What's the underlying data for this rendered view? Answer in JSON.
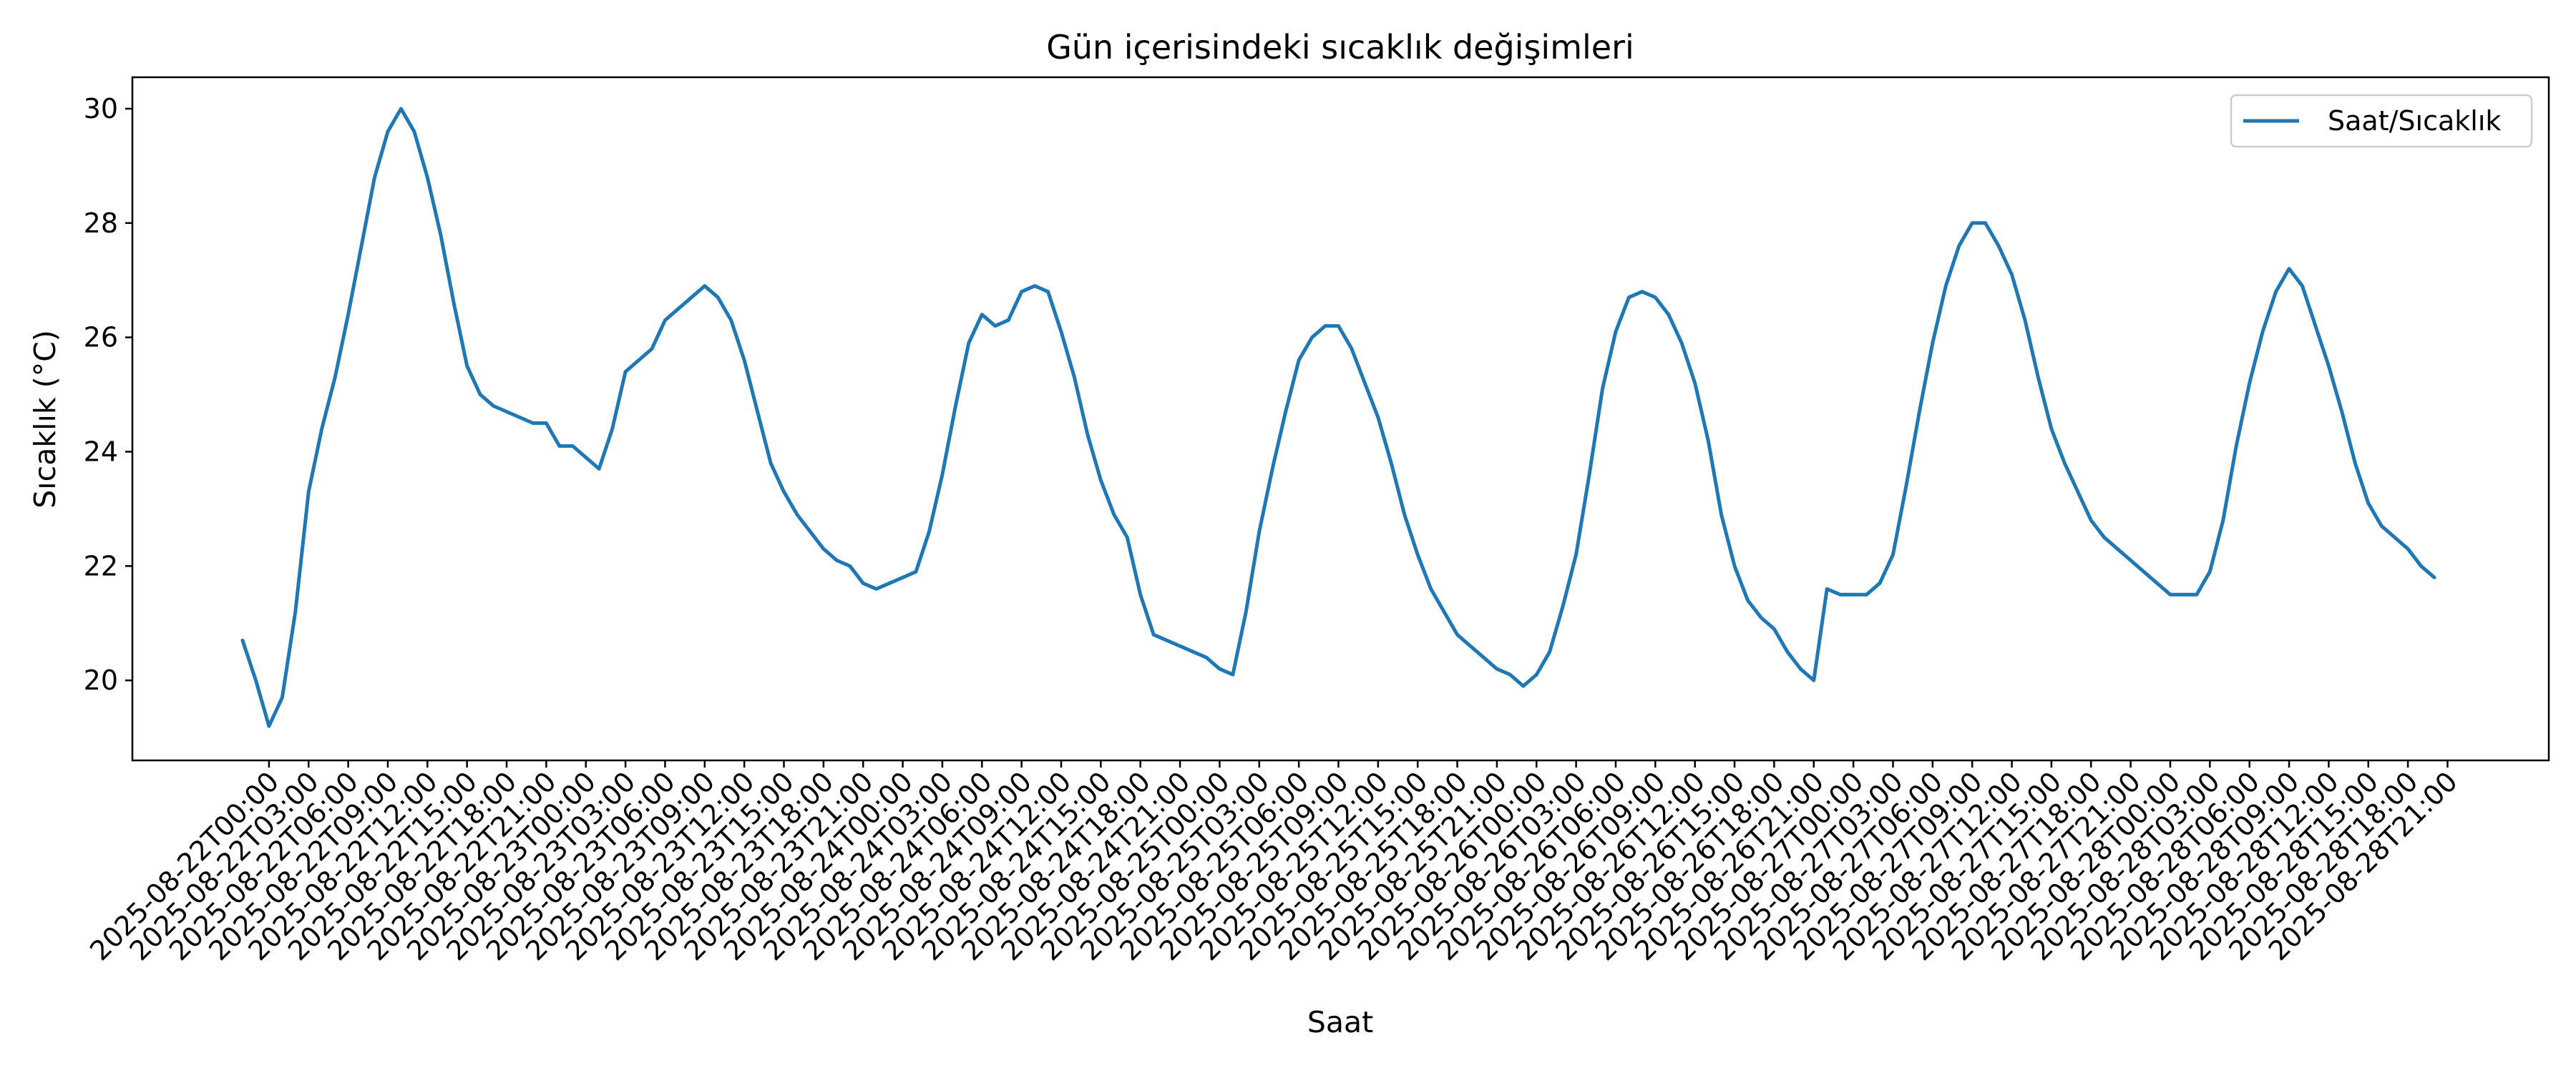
{
  "chart_data": {
    "type": "line",
    "title": "Gün içerisindeki sıcaklık değişimleri",
    "xlabel": "Saat",
    "ylabel": "Sıcaklık (°C)",
    "ylim": [
      18.6,
      30.55
    ],
    "yticks": [
      20,
      22,
      24,
      26,
      28,
      30
    ],
    "grid": false,
    "legend_position": "top-right",
    "x_tick_labels": [
      "2025-08-22T00:00",
      "2025-08-22T03:00",
      "2025-08-22T06:00",
      "2025-08-22T09:00",
      "2025-08-22T12:00",
      "2025-08-22T15:00",
      "2025-08-22T18:00",
      "2025-08-22T21:00",
      "2025-08-23T00:00",
      "2025-08-23T03:00",
      "2025-08-23T06:00",
      "2025-08-23T09:00",
      "2025-08-23T12:00",
      "2025-08-23T15:00",
      "2025-08-23T18:00",
      "2025-08-23T21:00",
      "2025-08-24T00:00",
      "2025-08-24T03:00",
      "2025-08-24T06:00",
      "2025-08-24T09:00",
      "2025-08-24T12:00",
      "2025-08-24T15:00",
      "2025-08-24T18:00",
      "2025-08-24T21:00",
      "2025-08-25T00:00",
      "2025-08-25T03:00",
      "2025-08-25T06:00",
      "2025-08-25T09:00",
      "2025-08-25T12:00",
      "2025-08-25T15:00",
      "2025-08-25T18:00",
      "2025-08-25T21:00",
      "2025-08-26T00:00",
      "2025-08-26T03:00",
      "2025-08-26T06:00",
      "2025-08-26T09:00",
      "2025-08-26T12:00",
      "2025-08-26T15:00",
      "2025-08-26T18:00",
      "2025-08-26T21:00",
      "2025-08-27T00:00",
      "2025-08-27T03:00",
      "2025-08-27T06:00",
      "2025-08-27T09:00",
      "2025-08-27T12:00",
      "2025-08-27T15:00",
      "2025-08-27T18:00",
      "2025-08-27T21:00",
      "2025-08-28T00:00",
      "2025-08-28T03:00",
      "2025-08-28T06:00",
      "2025-08-28T09:00",
      "2025-08-28T12:00",
      "2025-08-28T15:00",
      "2025-08-28T18:00",
      "2025-08-28T21:00"
    ],
    "series": [
      {
        "name": "Saat/Sıcaklık",
        "color": "#1f77b4",
        "start": "2025-08-21T22:00",
        "step_hours": 1,
        "values": [
          20.7,
          20.0,
          19.2,
          19.7,
          21.2,
          23.3,
          24.4,
          25.3,
          26.4,
          27.6,
          28.8,
          29.6,
          30.0,
          29.6,
          28.8,
          27.8,
          26.6,
          25.5,
          25.0,
          24.8,
          24.7,
          24.6,
          24.5,
          24.5,
          24.1,
          24.1,
          23.9,
          23.7,
          24.4,
          25.4,
          25.6,
          25.8,
          26.3,
          26.5,
          26.7,
          26.9,
          26.7,
          26.3,
          25.6,
          24.7,
          23.8,
          23.3,
          22.9,
          22.6,
          22.3,
          22.1,
          22.0,
          21.7,
          21.6,
          21.7,
          21.8,
          21.9,
          22.6,
          23.6,
          24.8,
          25.9,
          26.4,
          26.2,
          26.3,
          26.8,
          26.9,
          26.8,
          26.1,
          25.3,
          24.3,
          23.5,
          22.9,
          22.5,
          21.5,
          20.8,
          20.7,
          20.6,
          20.5,
          20.4,
          20.2,
          20.1,
          21.2,
          22.6,
          23.7,
          24.7,
          25.6,
          26.0,
          26.2,
          26.2,
          25.8,
          25.2,
          24.6,
          23.8,
          22.9,
          22.2,
          21.6,
          21.2,
          20.8,
          20.6,
          20.4,
          20.2,
          20.1,
          19.9,
          20.1,
          20.5,
          21.3,
          22.2,
          23.6,
          25.1,
          26.1,
          26.7,
          26.8,
          26.7,
          26.4,
          25.9,
          25.2,
          24.2,
          22.9,
          22.0,
          21.4,
          21.1,
          20.9,
          20.5,
          20.2,
          20.0,
          21.6,
          21.5,
          21.5,
          21.5,
          21.7,
          22.2,
          23.4,
          24.7,
          25.9,
          26.9,
          27.6,
          28.0,
          28.0,
          27.6,
          27.1,
          26.3,
          25.3,
          24.4,
          23.8,
          23.3,
          22.8,
          22.5,
          22.3,
          22.1,
          21.9,
          21.7,
          21.5,
          21.5,
          21.5,
          21.9,
          22.8,
          24.1,
          25.2,
          26.1,
          26.8,
          27.2,
          26.9,
          26.2,
          25.5,
          24.7,
          23.8,
          23.1,
          22.7,
          22.5,
          22.3,
          22.0,
          21.8
        ]
      }
    ]
  }
}
